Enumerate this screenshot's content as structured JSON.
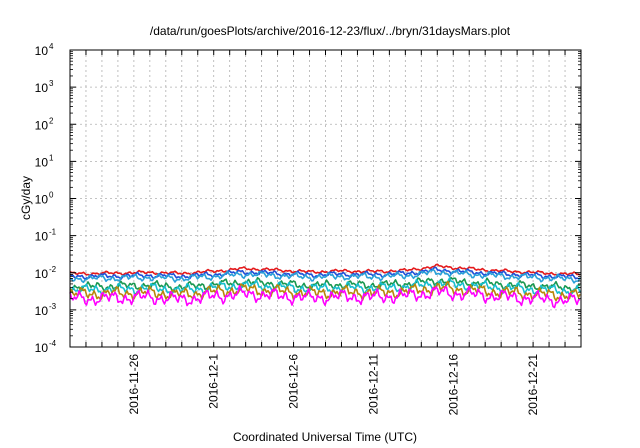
{
  "chart_data": {
    "type": "line",
    "title": "/data/run/goesPlots/archive/2016-12-23/flux/../bryn/31daysMars.plot",
    "xlabel": "Coordinated Universal Time (UTC)",
    "ylabel": "cGy/day",
    "y_scale": "log",
    "ylim": [
      0.0001,
      10000
    ],
    "xlim": [
      "2016-11-22",
      "2016-12-24"
    ],
    "grid": true,
    "legend": "none",
    "x_ticks": [
      "2016-11-26",
      "2016-12-1",
      "2016-12-6",
      "2016-12-11",
      "2016-12-16",
      "2016-12-21"
    ],
    "y_ticks": [
      {
        "base": "10",
        "exp": "-4"
      },
      {
        "base": "10",
        "exp": "-3"
      },
      {
        "base": "10",
        "exp": "-2"
      },
      {
        "base": "10",
        "exp": "-1"
      },
      {
        "base": "10",
        "exp": "0"
      },
      {
        "base": "10",
        "exp": "1"
      },
      {
        "base": "10",
        "exp": "2"
      },
      {
        "base": "10",
        "exp": "3"
      },
      {
        "base": "10",
        "exp": "4"
      }
    ],
    "x": [
      "2016-11-23",
      "2016-11-25",
      "2016-11-27",
      "2016-11-29",
      "2016-12-01",
      "2016-12-03",
      "2016-12-05",
      "2016-12-07",
      "2016-12-09",
      "2016-12-11",
      "2016-12-13",
      "2016-12-15",
      "2016-12-17",
      "2016-12-19",
      "2016-12-21",
      "2016-12-23"
    ],
    "series": [
      {
        "color": "#e41a1c",
        "values": [
          0.0095,
          0.0098,
          0.0102,
          0.0096,
          0.011,
          0.013,
          0.0118,
          0.0105,
          0.0112,
          0.0108,
          0.0115,
          0.015,
          0.0128,
          0.0112,
          0.0102,
          0.0092
        ]
      },
      {
        "color": "#1f4fd8",
        "values": [
          0.008,
          0.0082,
          0.0085,
          0.0081,
          0.009,
          0.0105,
          0.0096,
          0.0088,
          0.0092,
          0.009,
          0.0095,
          0.012,
          0.0104,
          0.0094,
          0.0086,
          0.0078
        ]
      },
      {
        "color": "#29a0d8",
        "values": [
          0.007,
          0.0072,
          0.0075,
          0.007,
          0.008,
          0.0092,
          0.0084,
          0.0076,
          0.008,
          0.0078,
          0.0083,
          0.0105,
          0.0091,
          0.0082,
          0.0075,
          0.0068
        ]
      },
      {
        "color": "#1a9850",
        "values": [
          0.0042,
          0.0044,
          0.0046,
          0.0041,
          0.0048,
          0.0056,
          0.005,
          0.0045,
          0.0048,
          0.0047,
          0.005,
          0.0062,
          0.0054,
          0.0049,
          0.0044,
          0.004
        ]
      },
      {
        "color": "#17becf",
        "values": [
          0.0035,
          0.0036,
          0.0038,
          0.0034,
          0.004,
          0.0046,
          0.0042,
          0.0037,
          0.004,
          0.0039,
          0.0041,
          0.0052,
          0.0045,
          0.004,
          0.0036,
          0.0033
        ]
      },
      {
        "color": "#b8860b",
        "values": [
          0.0027,
          0.0028,
          0.0029,
          0.0026,
          0.0031,
          0.0036,
          0.0032,
          0.0028,
          0.003,
          0.0029,
          0.0031,
          0.004,
          0.0034,
          0.003,
          0.0027,
          0.0025
        ]
      },
      {
        "color": "#ff00ff",
        "values": [
          0.002,
          0.0021,
          0.0022,
          0.0019,
          0.0023,
          0.0027,
          0.0024,
          0.0021,
          0.0023,
          0.0022,
          0.0024,
          0.003,
          0.0026,
          0.0023,
          0.002,
          0.0018
        ]
      }
    ]
  }
}
